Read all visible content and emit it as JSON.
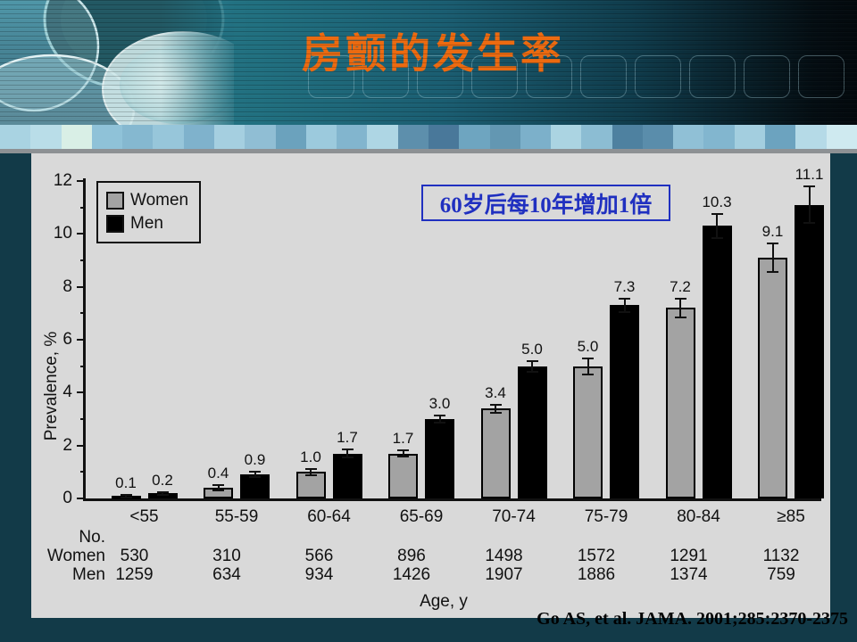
{
  "slide": {
    "title": "房颤的发生率",
    "annotation": "60岁后每10年增加1倍",
    "citation": "Go AS, et al. JAMA. 2001;285:2370-2375"
  },
  "theme": {
    "title_color": "#ec6a10",
    "annotation_color": "#2030c0",
    "background_color": "#123a48",
    "panel_color": "#d9d9d9",
    "women_bar_color": "#a3a3a3",
    "men_bar_color": "#000000",
    "mosaic_colors": [
      "#a9d3e2",
      "#b9dde8",
      "#d9efe6",
      "#8fc2d8",
      "#85b8d0",
      "#97c6da",
      "#7fb2cc",
      "#a5cfe0",
      "#90bed4",
      "#6ba2bd",
      "#9ccadd",
      "#82b5ce",
      "#aed6e4",
      "#5d8fac",
      "#49789a",
      "#6ea5c0",
      "#6397b2",
      "#7cb0ca",
      "#abd4e2",
      "#8cbdd3",
      "#4e81a0",
      "#5a8dab",
      "#90c0d6",
      "#82b6cf",
      "#a3cedf",
      "#6ca3bf",
      "#b5dae7",
      "#cfeaf0"
    ]
  },
  "chart_data": {
    "type": "bar",
    "title": "",
    "xlabel": "Age, y",
    "ylabel": "Prevalence, %",
    "ylim": [
      0,
      12
    ],
    "y_major_ticks": [
      0,
      2,
      4,
      6,
      8,
      10,
      12
    ],
    "grid": false,
    "legend_position": "top-left",
    "categories": [
      "<55",
      "55-59",
      "60-64",
      "65-69",
      "70-74",
      "75-79",
      "80-84",
      "≥85"
    ],
    "series": [
      {
        "name": "Women",
        "values": [
          0.1,
          0.4,
          1.0,
          1.7,
          3.4,
          5.0,
          7.2,
          9.1
        ],
        "errors": [
          0.05,
          0.1,
          0.12,
          0.12,
          0.15,
          0.3,
          0.35,
          0.55
        ]
      },
      {
        "name": "Men",
        "values": [
          0.2,
          0.9,
          1.7,
          3.0,
          5.0,
          7.3,
          10.3,
          11.1
        ],
        "errors": [
          0.05,
          0.1,
          0.15,
          0.15,
          0.2,
          0.25,
          0.45,
          0.7
        ]
      }
    ],
    "counts": {
      "label": "No.",
      "rows": [
        {
          "name": "Women",
          "values": [
            "530",
            "310",
            "566",
            "896",
            "1498",
            "1572",
            "1291",
            "1132"
          ]
        },
        {
          "name": "Men",
          "values": [
            "1259",
            "634",
            "934",
            "1426",
            "1907",
            "1886",
            "1374",
            "759"
          ]
        }
      ]
    }
  }
}
